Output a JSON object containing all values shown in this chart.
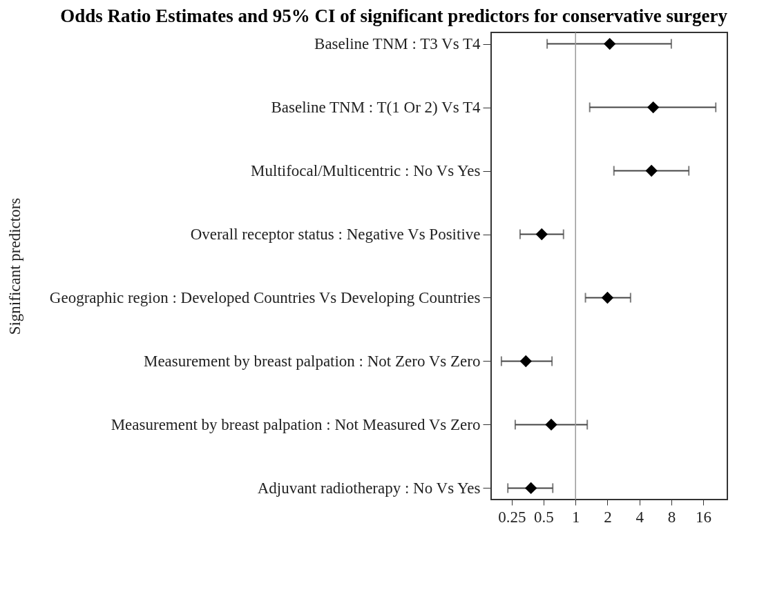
{
  "chart_data": {
    "type": "scatter",
    "title": "Odds Ratio Estimates and 95% CI of significant predictors for conservative surgery",
    "ylabel": "Significant predictors",
    "categories": [
      "Baseline TNM : T3 Vs T4",
      "Baseline TNM : T(1 Or 2) Vs T4",
      "Multifocal/Multicentric : No Vs Yes",
      "Overall receptor status : Negative Vs Positive",
      "Geographic region : Developed Countries Vs Developing Countries",
      "Measurement by breast palpation : Not Zero Vs Zero",
      "Measurement by breast palpation : Not Measured Vs Zero",
      "Adjuvant radiotherapy : No Vs Yes"
    ],
    "values": [
      2.1,
      5.4,
      5.2,
      0.48,
      2.0,
      0.34,
      0.59,
      0.38
    ],
    "errors": [
      [
        0.54,
        8.0
      ],
      [
        1.36,
        21
      ],
      [
        2.3,
        11.7
      ],
      [
        0.3,
        0.77
      ],
      [
        1.24,
        3.3
      ],
      [
        0.2,
        0.6
      ],
      [
        0.27,
        1.29
      ],
      [
        0.23,
        0.61
      ]
    ],
    "colors": [
      "#000000",
      "#000000",
      "#000000",
      "#000000",
      "#000000",
      "#000000",
      "#000000",
      "#000000"
    ],
    "orientation": "horizontal",
    "log": "x",
    "xlim": [
      0.16,
      27
    ],
    "xticks": [
      0.25,
      0.5,
      1,
      2,
      4,
      8,
      16
    ],
    "ref_lines": [
      {
        "axis": "x",
        "value": 1,
        "color": "#999999"
      }
    ],
    "marker": "diamond",
    "grid": false
  }
}
